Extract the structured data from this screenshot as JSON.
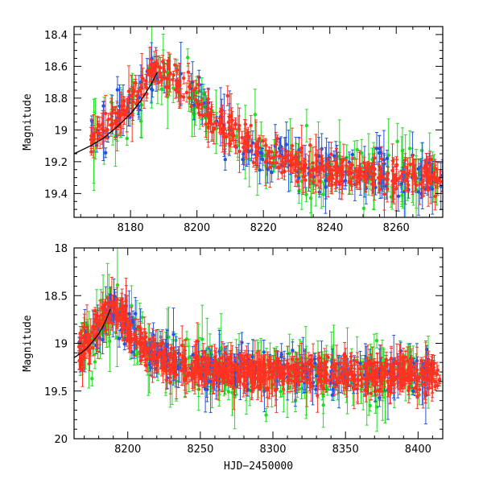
{
  "chart_data": [
    {
      "type": "scatter",
      "title": "",
      "xlabel": "",
      "ylabel": "Magnitude",
      "xlim": [
        8163,
        8274
      ],
      "ylim": [
        19.55,
        18.35
      ],
      "y_inverted": true,
      "x_ticks": [
        8180,
        8200,
        8220,
        8240,
        8260
      ],
      "x_tick_labels": [
        "8180",
        "8200",
        "8220",
        "8240",
        "8260"
      ],
      "y_ticks": [
        18.4,
        18.6,
        18.8,
        19.0,
        19.2,
        19.4
      ],
      "y_tick_labels": [
        "18.4",
        "18.6",
        "18.8",
        "19",
        "19.2",
        "19.4"
      ],
      "grid": false,
      "series": [
        {
          "color": "#ff3322",
          "marker": "circle",
          "x_range": [
            8168,
            8274
          ],
          "count": 430,
          "typical_error": 0.05
        },
        {
          "color": "#2255dd",
          "marker": "circle",
          "x_range": [
            8168,
            8274
          ],
          "count": 170,
          "typical_error": 0.07
        },
        {
          "color": "#22dd22",
          "marker": "circle",
          "x_range": [
            8168,
            8274
          ],
          "count": 150,
          "typical_error": 0.09
        }
      ],
      "light_curve": {
        "x": [
          8165,
          8175,
          8183,
          8188,
          8192,
          8198,
          8204,
          8212,
          8220,
          8230,
          8240,
          8250,
          8260,
          8274
        ],
        "y": [
          19.1,
          18.95,
          18.75,
          18.63,
          18.66,
          18.78,
          18.92,
          19.05,
          19.15,
          19.22,
          19.26,
          19.28,
          19.29,
          19.3
        ]
      },
      "model_curve": {
        "x": [
          8163,
          8168,
          8172,
          8176,
          8180,
          8183,
          8186,
          8188
        ],
        "y": [
          19.15,
          19.1,
          19.05,
          18.98,
          18.9,
          18.82,
          18.72,
          18.64
        ]
      }
    },
    {
      "type": "scatter",
      "title": "",
      "xlabel": "HJD−2450000",
      "ylabel": "Magnitude",
      "xlim": [
        8163,
        8417
      ],
      "ylim": [
        20.0,
        18.0
      ],
      "y_inverted": true,
      "x_ticks": [
        8200,
        8250,
        8300,
        8350,
        8400
      ],
      "x_tick_labels": [
        "8200",
        "8250",
        "8300",
        "8350",
        "8400"
      ],
      "y_ticks": [
        18.0,
        18.5,
        19.0,
        19.5,
        20.0
      ],
      "y_tick_labels": [
        "18",
        "18.5",
        "19",
        "19.5",
        "20"
      ],
      "grid": false,
      "series": [
        {
          "color": "#ff3322",
          "marker": "circle",
          "x_range": [
            8166,
            8415
          ],
          "count": 760,
          "typical_error": 0.08
        },
        {
          "color": "#2255dd",
          "marker": "circle",
          "x_range": [
            8166,
            8410
          ],
          "count": 300,
          "typical_error": 0.1
        },
        {
          "color": "#22dd22",
          "marker": "circle",
          "x_range": [
            8166,
            8410
          ],
          "count": 280,
          "typical_error": 0.13
        }
      ],
      "light_curve": {
        "x": [
          8165,
          8175,
          8183,
          8188,
          8192,
          8198,
          8204,
          8212,
          8220,
          8240,
          8260,
          8300,
          8350,
          8400,
          8417
        ],
        "y": [
          19.1,
          18.95,
          18.75,
          18.63,
          18.66,
          18.78,
          18.92,
          19.05,
          19.15,
          19.24,
          19.28,
          19.3,
          19.32,
          19.32,
          19.33
        ]
      },
      "model_curve": {
        "x": [
          8163,
          8168,
          8172,
          8176,
          8180,
          8183,
          8186,
          8188
        ],
        "y": [
          19.15,
          19.1,
          19.05,
          18.98,
          18.9,
          18.82,
          18.72,
          18.64
        ]
      }
    }
  ]
}
